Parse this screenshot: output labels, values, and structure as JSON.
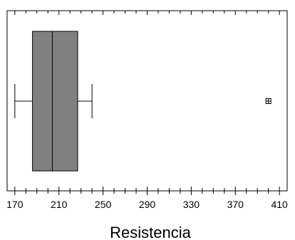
{
  "chart_data": {
    "type": "boxplot",
    "title": "",
    "xlabel": "Resistencia",
    "ylabel": "",
    "xlim": [
      163,
      417
    ],
    "x_ticks": [
      170,
      210,
      250,
      290,
      330,
      370,
      410
    ],
    "x_tick_labels": [
      "170",
      "210",
      "250",
      "290",
      "330",
      "370",
      "410"
    ],
    "minor_tick_step": 10,
    "grid": false,
    "box": {
      "whisker_low": 170,
      "q1": 186,
      "median": 204,
      "q3": 227,
      "whisker_high": 240,
      "outliers": [
        400
      ]
    },
    "colors": {
      "box_fill": "#808080",
      "lines": "#000000",
      "background": "#ffffff"
    }
  }
}
